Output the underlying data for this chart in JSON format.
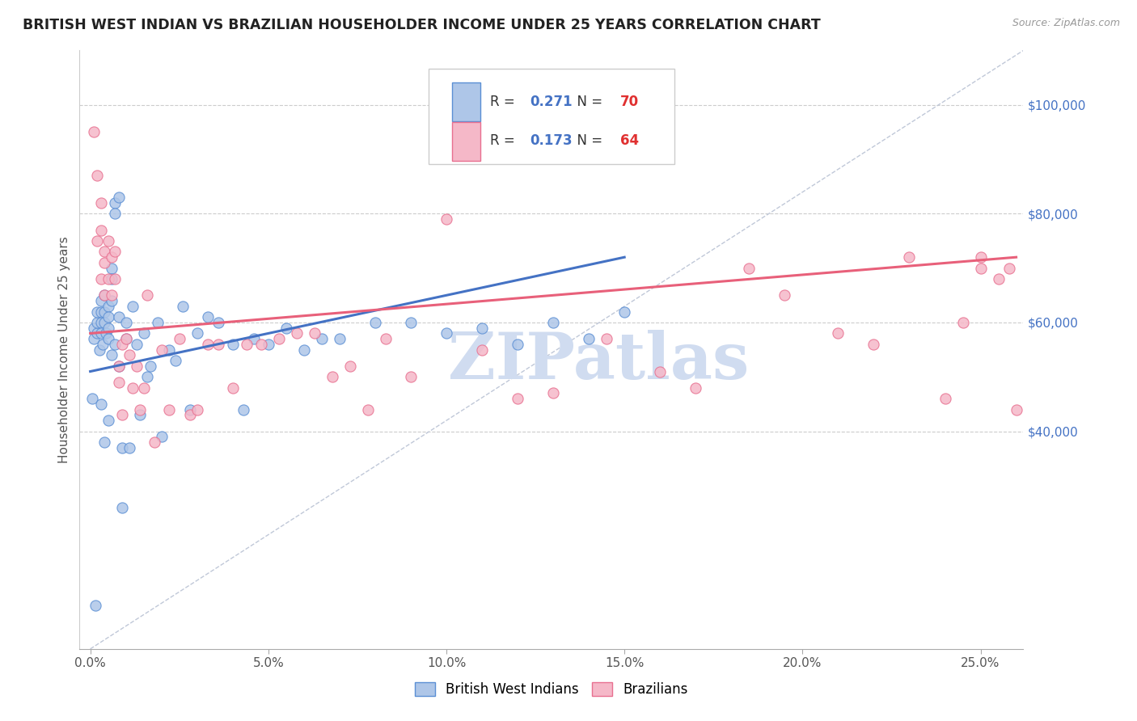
{
  "title": "BRITISH WEST INDIAN VS BRAZILIAN HOUSEHOLDER INCOME UNDER 25 YEARS CORRELATION CHART",
  "source": "Source: ZipAtlas.com",
  "ylabel": "Householder Income Under 25 years",
  "xlabel_ticks": [
    "0.0%",
    "5.0%",
    "10.0%",
    "15.0%",
    "20.0%",
    "25.0%"
  ],
  "xlabel_vals": [
    0.0,
    0.05,
    0.1,
    0.15,
    0.2,
    0.25
  ],
  "ylabel_ticks": [
    "$40,000",
    "$60,000",
    "$80,000",
    "$100,000"
  ],
  "ylabel_vals": [
    40000,
    60000,
    80000,
    100000
  ],
  "xlim": [
    -0.003,
    0.262
  ],
  "ylim": [
    0,
    110000
  ],
  "blue_R": "0.271",
  "blue_N": "70",
  "pink_R": "0.173",
  "pink_N": "64",
  "blue_color": "#aec6e8",
  "pink_color": "#f5b8c8",
  "blue_edge_color": "#5b8fd4",
  "pink_edge_color": "#e87090",
  "blue_line_color": "#4472c4",
  "pink_line_color": "#e8607a",
  "diag_line_color": "#c0c8d8",
  "watermark": "ZIPatlas",
  "watermark_color": "#d0dcf0",
  "blue_scatter_x": [
    0.0005,
    0.001,
    0.001,
    0.0015,
    0.002,
    0.002,
    0.002,
    0.0025,
    0.003,
    0.003,
    0.003,
    0.003,
    0.003,
    0.0035,
    0.004,
    0.004,
    0.004,
    0.004,
    0.0045,
    0.005,
    0.005,
    0.005,
    0.005,
    0.005,
    0.006,
    0.006,
    0.006,
    0.006,
    0.007,
    0.007,
    0.007,
    0.008,
    0.008,
    0.008,
    0.009,
    0.009,
    0.01,
    0.01,
    0.011,
    0.012,
    0.013,
    0.014,
    0.015,
    0.016,
    0.017,
    0.019,
    0.02,
    0.022,
    0.024,
    0.026,
    0.028,
    0.03,
    0.033,
    0.036,
    0.04,
    0.043,
    0.046,
    0.05,
    0.055,
    0.06,
    0.065,
    0.07,
    0.08,
    0.09,
    0.1,
    0.11,
    0.12,
    0.13,
    0.14,
    0.15
  ],
  "blue_scatter_y": [
    46000,
    57000,
    59000,
    8000,
    58000,
    60000,
    62000,
    55000,
    64000,
    62000,
    60000,
    58000,
    45000,
    56000,
    65000,
    62000,
    60000,
    38000,
    58000,
    63000,
    61000,
    59000,
    57000,
    42000,
    70000,
    68000,
    64000,
    54000,
    82000,
    80000,
    56000,
    83000,
    52000,
    61000,
    37000,
    26000,
    57000,
    60000,
    37000,
    63000,
    56000,
    43000,
    58000,
    50000,
    52000,
    60000,
    39000,
    55000,
    53000,
    63000,
    44000,
    58000,
    61000,
    60000,
    56000,
    44000,
    57000,
    56000,
    59000,
    55000,
    57000,
    57000,
    60000,
    60000,
    58000,
    59000,
    56000,
    60000,
    57000,
    62000
  ],
  "pink_scatter_x": [
    0.001,
    0.002,
    0.002,
    0.003,
    0.003,
    0.003,
    0.004,
    0.004,
    0.004,
    0.005,
    0.005,
    0.006,
    0.006,
    0.007,
    0.007,
    0.008,
    0.008,
    0.009,
    0.009,
    0.01,
    0.011,
    0.012,
    0.013,
    0.014,
    0.015,
    0.016,
    0.018,
    0.02,
    0.022,
    0.025,
    0.028,
    0.03,
    0.033,
    0.036,
    0.04,
    0.044,
    0.048,
    0.053,
    0.058,
    0.063,
    0.068,
    0.073,
    0.078,
    0.083,
    0.09,
    0.1,
    0.11,
    0.12,
    0.13,
    0.145,
    0.16,
    0.17,
    0.185,
    0.195,
    0.21,
    0.22,
    0.23,
    0.24,
    0.245,
    0.25,
    0.255,
    0.258,
    0.26,
    0.25
  ],
  "pink_scatter_y": [
    95000,
    87000,
    75000,
    82000,
    77000,
    68000,
    73000,
    71000,
    65000,
    75000,
    68000,
    72000,
    65000,
    73000,
    68000,
    52000,
    49000,
    56000,
    43000,
    57000,
    54000,
    48000,
    52000,
    44000,
    48000,
    65000,
    38000,
    55000,
    44000,
    57000,
    43000,
    44000,
    56000,
    56000,
    48000,
    56000,
    56000,
    57000,
    58000,
    58000,
    50000,
    52000,
    44000,
    57000,
    50000,
    79000,
    55000,
    46000,
    47000,
    57000,
    51000,
    48000,
    70000,
    65000,
    58000,
    56000,
    72000,
    46000,
    60000,
    72000,
    68000,
    70000,
    44000,
    70000
  ],
  "blue_line_x": [
    0.0,
    0.15
  ],
  "blue_line_y": [
    51000,
    72000
  ],
  "pink_line_x": [
    0.0,
    0.26
  ],
  "pink_line_y": [
    58000,
    72000
  ],
  "diag_line_x": [
    0.0,
    0.262
  ],
  "diag_line_y": [
    0,
    110000
  ]
}
